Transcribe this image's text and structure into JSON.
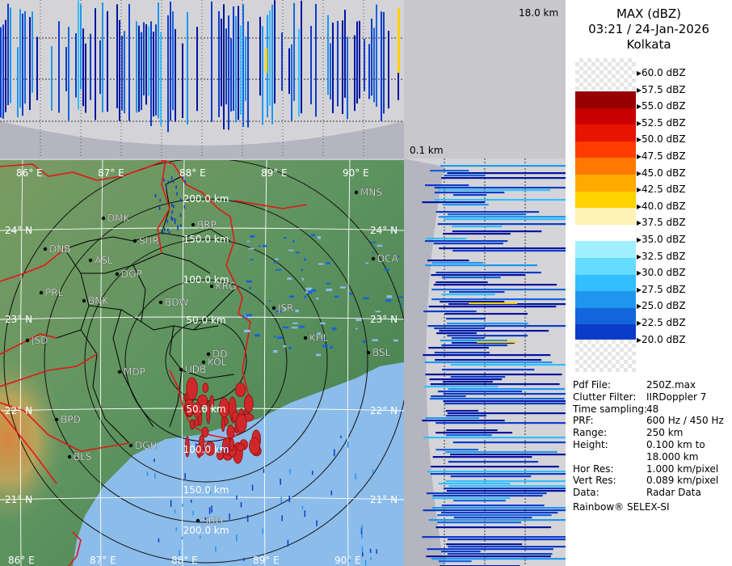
{
  "header": {
    "product": "MAX (dBZ)",
    "datetime": "03:21 / 24-Jan-2026",
    "station": "Kolkata"
  },
  "top_height_label": "18.0 km",
  "bottom_height_label": "0.1 km",
  "legend": {
    "items": [
      {
        "label": "60.0 dBZ",
        "color": ""
      },
      {
        "label": "57.5 dBZ",
        "color": "#960000"
      },
      {
        "label": "55.0 dBZ",
        "color": "#c80000"
      },
      {
        "label": "52.5 dBZ",
        "color": "#e61400"
      },
      {
        "label": "50.0 dBZ",
        "color": "#ff3c00"
      },
      {
        "label": "47.5 dBZ",
        "color": "#ff7800"
      },
      {
        "label": "45.0 dBZ",
        "color": "#ffaa00"
      },
      {
        "label": "42.5 dBZ",
        "color": "#ffd200"
      },
      {
        "label": "40.0 dBZ",
        "color": "#fff0b4"
      },
      {
        "label": "37.5 dBZ",
        "color": "#ffffff"
      },
      {
        "label": "35.0 dBZ",
        "color": "#a0f0ff"
      },
      {
        "label": "32.5 dBZ",
        "color": "#64dcff"
      },
      {
        "label": "30.0 dBZ",
        "color": "#32beff"
      },
      {
        "label": "27.5 dBZ",
        "color": "#1e96f0"
      },
      {
        "label": "25.0 dBZ",
        "color": "#1464dc"
      },
      {
        "label": "22.5 dBZ",
        "color": "#0a3cc8"
      },
      {
        "label": "20.0 dBZ",
        "color": "#0014a0"
      }
    ]
  },
  "info": [
    {
      "key": "Pdf File:",
      "value": "250Z.max"
    },
    {
      "key": "Clutter Filter:",
      "value": "IIRDoppler 7"
    },
    {
      "key": "Time sampling:",
      "value": "48"
    },
    {
      "key": "PRF:",
      "value": "600 Hz / 450 Hz"
    },
    {
      "key": "Range:",
      "value": "250 km"
    },
    {
      "key": "Height:",
      "value": "0.100 km to"
    },
    {
      "key": "",
      "value": "18.000 km"
    },
    {
      "key": "Hor Res:",
      "value": "1.000 km/pixel"
    },
    {
      "key": "Vert Res:",
      "value": "0.089 km/pixel"
    },
    {
      "key": "Data:",
      "value": "Radar Data"
    }
  ],
  "footer": "Rainbow® SELEX-SI",
  "map": {
    "lon_labels": [
      "86° E",
      "87° E",
      "88° E",
      "89° E",
      "90° E"
    ],
    "lat_labels": [
      "24° N",
      "23° N",
      "22° N",
      "21° N"
    ],
    "range_labels": [
      "50.0 km",
      "100.0 km",
      "150.0 km",
      "200.0 km"
    ],
    "places": [
      {
        "code": "MNS"
      },
      {
        "code": "DMK"
      },
      {
        "code": "BRP"
      },
      {
        "code": "SUR"
      },
      {
        "code": "DNB"
      },
      {
        "code": "ASL"
      },
      {
        "code": "DGP"
      },
      {
        "code": "DCA"
      },
      {
        "code": "KRG"
      },
      {
        "code": "PRL"
      },
      {
        "code": "BNK"
      },
      {
        "code": "BDW"
      },
      {
        "code": "JSR"
      },
      {
        "code": "KHL"
      },
      {
        "code": "JSD"
      },
      {
        "code": "DD"
      },
      {
        "code": "KOL"
      },
      {
        "code": "BSL"
      },
      {
        "code": "MDP"
      },
      {
        "code": "UDB"
      },
      {
        "code": "BPD"
      },
      {
        "code": "DGH"
      },
      {
        "code": "BLS"
      },
      {
        "code": "SHD"
      }
    ]
  },
  "colors": {
    "land": "#5f8f5a",
    "sea": "#8cbcea",
    "state_border": "#e01818",
    "district_border": "#000000"
  }
}
